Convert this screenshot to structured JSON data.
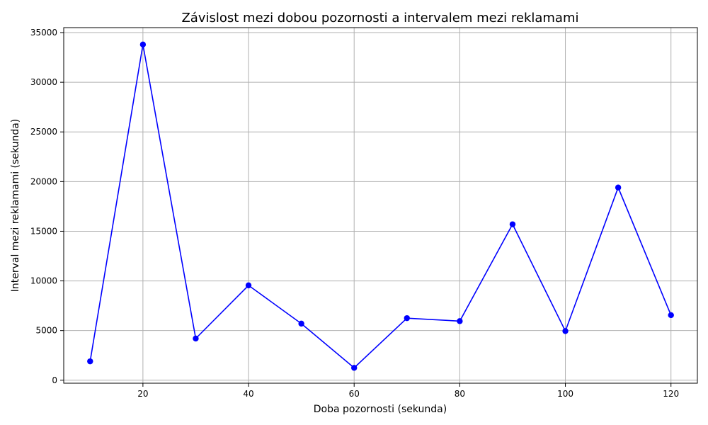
{
  "chart_data": {
    "type": "line",
    "title": "Závislost mezi dobou pozornosti a intervalem mezi reklamami",
    "xlabel": "Doba pozornosti (sekunda)",
    "ylabel": "Interval mezi reklamami (sekunda)",
    "xlim": [
      5,
      125
    ],
    "ylim": [
      -300,
      35500
    ],
    "xticks": [
      20,
      40,
      60,
      80,
      100,
      120
    ],
    "yticks": [
      0,
      5000,
      10000,
      15000,
      20000,
      25000,
      30000,
      35000
    ],
    "grid": true,
    "series": [
      {
        "color": "#0000ff",
        "marker": "circle",
        "x": [
          10,
          20,
          30,
          40,
          50,
          60,
          70,
          80,
          90,
          100,
          110,
          120
        ],
        "y": [
          1900,
          33800,
          4200,
          9550,
          5700,
          1250,
          6250,
          5950,
          15700,
          4950,
          19400,
          6550
        ]
      }
    ]
  }
}
